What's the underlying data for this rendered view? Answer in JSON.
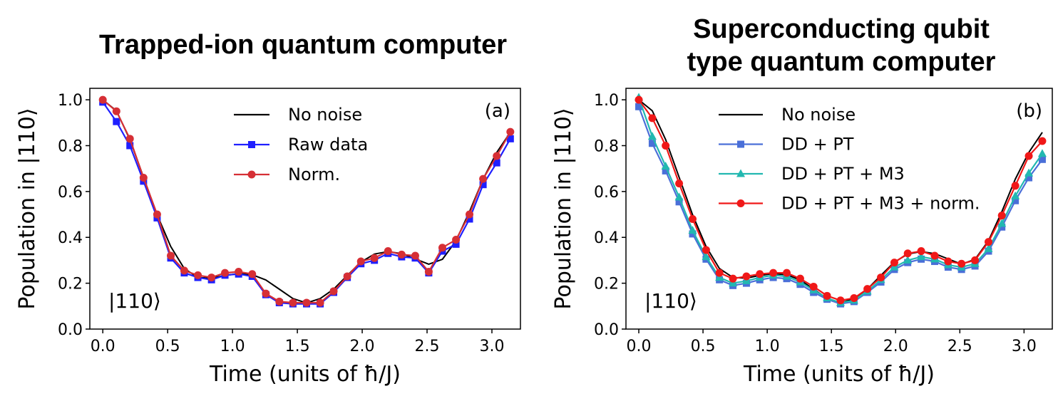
{
  "chart_data": [
    {
      "type": "line",
      "title": "Trapped-ion quantum computer",
      "panel_label": "(a)",
      "state_label": "|110⟩",
      "xlabel": "Time (units of ħ/J)",
      "ylabel": "Population in |110⟩",
      "xlim": [
        -0.1,
        3.22
      ],
      "ylim": [
        0.0,
        1.05
      ],
      "xticks": [
        "0.0",
        "0.5",
        "1.0",
        "1.5",
        "2.0",
        "2.5",
        "3.0"
      ],
      "yticks": [
        "0.0",
        "0.2",
        "0.4",
        "0.6",
        "0.8",
        "1.0"
      ],
      "legend_position": "top-right",
      "x": [
        0.0,
        0.105,
        0.209,
        0.314,
        0.419,
        0.524,
        0.628,
        0.733,
        0.838,
        0.942,
        1.047,
        1.152,
        1.257,
        1.361,
        1.466,
        1.571,
        1.676,
        1.78,
        1.885,
        1.99,
        2.094,
        2.199,
        2.304,
        2.409,
        2.513,
        2.618,
        2.723,
        2.827,
        2.932,
        3.037,
        3.142
      ],
      "series": [
        {
          "name": "No noise",
          "color": "#000000",
          "marker": "none",
          "values": [
            1.0,
            0.952,
            0.826,
            0.662,
            0.498,
            0.36,
            0.264,
            0.225,
            0.222,
            0.234,
            0.242,
            0.237,
            0.214,
            0.174,
            0.133,
            0.114,
            0.133,
            0.174,
            0.234,
            0.292,
            0.327,
            0.338,
            0.329,
            0.306,
            0.283,
            0.304,
            0.385,
            0.512,
            0.654,
            0.77,
            0.858
          ]
        },
        {
          "name": "Raw data",
          "color": "#1f1fff",
          "marker": "square",
          "values": [
            0.99,
            0.905,
            0.8,
            0.645,
            0.485,
            0.31,
            0.245,
            0.225,
            0.215,
            0.235,
            0.24,
            0.23,
            0.15,
            0.115,
            0.11,
            0.11,
            0.11,
            0.16,
            0.225,
            0.285,
            0.3,
            0.33,
            0.315,
            0.31,
            0.245,
            0.34,
            0.37,
            0.48,
            0.63,
            0.725,
            0.83
          ]
        },
        {
          "name": "Norm.",
          "color": "#d62f35",
          "marker": "circle",
          "values": [
            1.0,
            0.95,
            0.83,
            0.66,
            0.5,
            0.32,
            0.255,
            0.235,
            0.225,
            0.245,
            0.25,
            0.24,
            0.155,
            0.12,
            0.115,
            0.115,
            0.115,
            0.165,
            0.23,
            0.295,
            0.31,
            0.34,
            0.325,
            0.32,
            0.25,
            0.355,
            0.39,
            0.5,
            0.655,
            0.755,
            0.86
          ]
        }
      ]
    },
    {
      "type": "line",
      "title": "Superconducting qubit type quantum computer",
      "title_lines": [
        "Superconducting qubit",
        "type quantum computer"
      ],
      "panel_label": "(b)",
      "state_label": "|110⟩",
      "xlabel": "Time (units of ħ/J)",
      "ylabel": "Population in |110⟩",
      "xlim": [
        -0.1,
        3.22
      ],
      "ylim": [
        0.0,
        1.05
      ],
      "xticks": [
        "0.0",
        "0.5",
        "1.0",
        "1.5",
        "2.0",
        "2.5",
        "3.0"
      ],
      "yticks": [
        "0.0",
        "0.2",
        "0.4",
        "0.6",
        "0.8",
        "1.0"
      ],
      "legend_position": "top-right",
      "x": [
        0.0,
        0.105,
        0.209,
        0.314,
        0.419,
        0.524,
        0.628,
        0.733,
        0.838,
        0.942,
        1.047,
        1.152,
        1.257,
        1.361,
        1.466,
        1.571,
        1.676,
        1.78,
        1.885,
        1.99,
        2.094,
        2.199,
        2.304,
        2.409,
        2.513,
        2.618,
        2.723,
        2.827,
        2.932,
        3.037,
        3.142
      ],
      "series": [
        {
          "name": "No noise",
          "color": "#000000",
          "marker": "none",
          "values": [
            1.0,
            0.952,
            0.826,
            0.662,
            0.498,
            0.36,
            0.264,
            0.225,
            0.222,
            0.234,
            0.242,
            0.237,
            0.214,
            0.174,
            0.133,
            0.114,
            0.133,
            0.174,
            0.234,
            0.292,
            0.327,
            0.338,
            0.329,
            0.306,
            0.283,
            0.304,
            0.385,
            0.512,
            0.654,
            0.77,
            0.858
          ]
        },
        {
          "name": "DD + PT",
          "color": "#4a6fd8",
          "marker": "square",
          "values": [
            0.97,
            0.81,
            0.69,
            0.555,
            0.415,
            0.305,
            0.215,
            0.19,
            0.2,
            0.215,
            0.225,
            0.22,
            0.195,
            0.16,
            0.13,
            0.11,
            0.12,
            0.16,
            0.205,
            0.26,
            0.29,
            0.305,
            0.295,
            0.27,
            0.26,
            0.275,
            0.34,
            0.445,
            0.56,
            0.66,
            0.74
          ]
        },
        {
          "name": "DD + PT + M3",
          "color": "#22b8b0",
          "marker": "triangle",
          "values": [
            1.01,
            0.84,
            0.71,
            0.575,
            0.43,
            0.315,
            0.225,
            0.2,
            0.21,
            0.225,
            0.235,
            0.23,
            0.205,
            0.17,
            0.135,
            0.115,
            0.125,
            0.165,
            0.215,
            0.27,
            0.3,
            0.315,
            0.305,
            0.28,
            0.27,
            0.285,
            0.35,
            0.46,
            0.58,
            0.68,
            0.765
          ]
        },
        {
          "name": "DD + PT + M3 + norm.",
          "color": "#f01818",
          "marker": "circle",
          "values": [
            1.0,
            0.92,
            0.8,
            0.635,
            0.48,
            0.345,
            0.245,
            0.22,
            0.23,
            0.24,
            0.245,
            0.245,
            0.22,
            0.185,
            0.145,
            0.125,
            0.135,
            0.175,
            0.225,
            0.29,
            0.33,
            0.34,
            0.32,
            0.295,
            0.285,
            0.3,
            0.38,
            0.495,
            0.625,
            0.755,
            0.82
          ]
        }
      ]
    }
  ]
}
